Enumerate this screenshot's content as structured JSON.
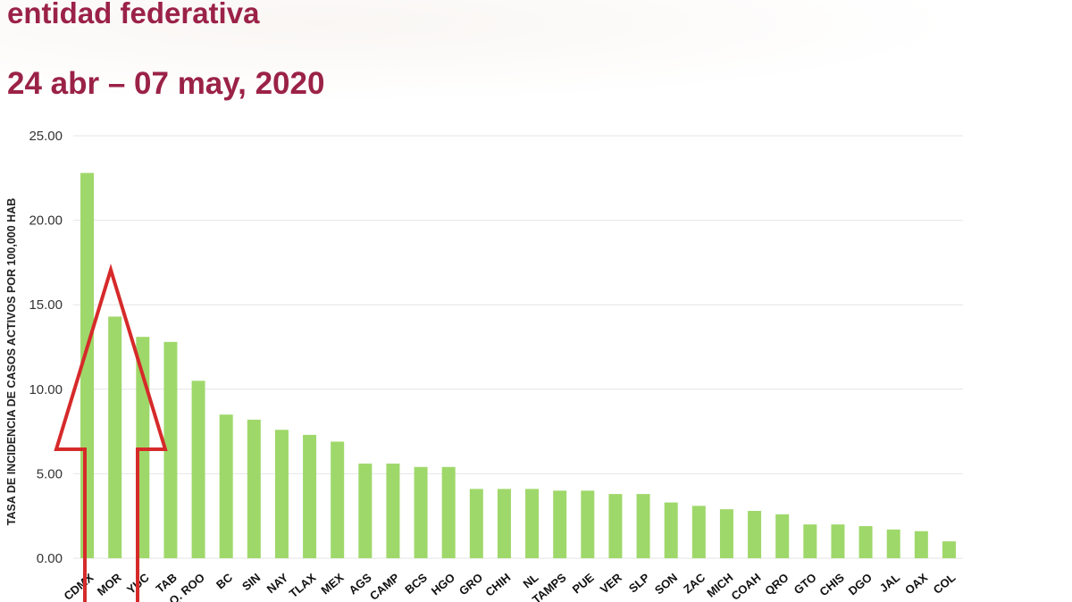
{
  "header": {
    "title": "entidad federativa",
    "subtitle": "24 abr – 07 may, 2020"
  },
  "colors": {
    "title": "#9b2247",
    "bar": "#9fd86a",
    "arrow": "#d62a2a",
    "grid": "#e6e6e6",
    "axis_text": "#333333"
  },
  "chart_data": {
    "type": "bar",
    "ylabel": "TASA DE INCIDENCIA DE CASOS ACTIVOS  POR 100,000 HAB",
    "ylim": [
      0,
      25
    ],
    "yticks": [
      "0.00",
      "5.00",
      "10.00",
      "15.00",
      "20.00",
      "25.00"
    ],
    "grid": true,
    "categories": [
      "CDMX",
      "MOR",
      "YUC",
      "TAB",
      "Q. ROO",
      "BC",
      "SIN",
      "NAY",
      "TLAX",
      "MEX",
      "AGS",
      "CAMP",
      "BCS",
      "HGO",
      "GRO",
      "CHIH",
      "NL",
      "TAMPS",
      "PUE",
      "VER",
      "SLP",
      "SON",
      "ZAC",
      "MICH",
      "COAH",
      "QRO",
      "GTO",
      "CHIS",
      "DGO",
      "JAL",
      "OAX",
      "COL"
    ],
    "values": [
      22.8,
      14.3,
      13.1,
      12.8,
      10.5,
      8.5,
      8.2,
      7.6,
      7.3,
      6.9,
      5.6,
      5.6,
      5.4,
      5.4,
      4.1,
      4.1,
      4.1,
      4.0,
      4.0,
      3.8,
      3.8,
      3.3,
      3.1,
      2.9,
      2.8,
      2.6,
      2.0,
      2.0,
      1.9,
      1.7,
      1.6,
      1.0
    ],
    "annotation": "red upward arrow overlay highlighting CDMX, MOR, YUC"
  }
}
